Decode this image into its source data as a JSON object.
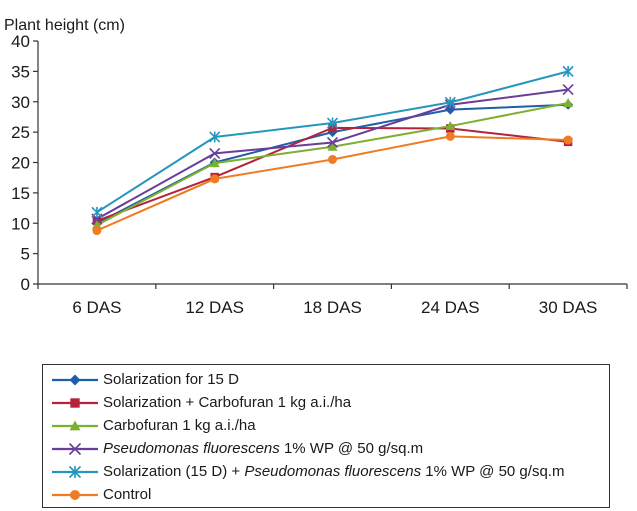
{
  "chart_data": {
    "type": "line",
    "ylabel": "Plant height (cm)",
    "xlabel": "",
    "categories": [
      "6 DAS",
      "12 DAS",
      "18 DAS",
      "24 DAS",
      "30 DAS"
    ],
    "ylim": [
      0,
      40
    ],
    "yticks": [
      "0",
      "5",
      "10",
      "15",
      "20",
      "25",
      "30",
      "35",
      "40"
    ],
    "grid": false,
    "legend_position": "bottom",
    "series": [
      {
        "name": "Solarization for 15 D",
        "color": "#1f5fa8",
        "marker": "diamond",
        "values": [
          10,
          20,
          25,
          28.7,
          29.5
        ],
        "legend_parts": [
          {
            "text": "Solarization for 15 D",
            "italic": false
          }
        ]
      },
      {
        "name": "Solarization + Carbofuran 1 kg a.i./ha",
        "color": "#b5233a",
        "marker": "square",
        "values": [
          10.4,
          17.6,
          25.7,
          25.6,
          23.4
        ],
        "legend_parts": [
          {
            "text": "Solarization + Carbofuran 1 kg a.i./ha",
            "italic": false
          }
        ]
      },
      {
        "name": "Carbofuran 1 kg a.i./ha",
        "color": "#7cb030",
        "marker": "triangle",
        "values": [
          9.7,
          19.9,
          22.6,
          26,
          29.8
        ],
        "legend_parts": [
          {
            "text": "Carbofuran 1 kg a.i./ha",
            "italic": false
          }
        ]
      },
      {
        "name": "Pseudomonas fluorescens 1% WP @ 50 g/sq.m",
        "color": "#6a3d9a",
        "marker": "x",
        "values": [
          10.7,
          21.5,
          23.3,
          29.5,
          32
        ],
        "legend_parts": [
          {
            "text": "Pseudomonas fluorescens",
            "italic": true
          },
          {
            "text": " 1% WP @ 50 g/sq.m",
            "italic": false
          }
        ]
      },
      {
        "name": "Solarization (15 D) + Pseudomonas fluorescens 1% WP @ 50 g/sq.m",
        "color": "#2596be",
        "marker": "star",
        "values": [
          11.8,
          24.2,
          26.5,
          29.9,
          35
        ],
        "legend_parts": [
          {
            "text": "Solarization (15 D) + ",
            "italic": false
          },
          {
            "text": "Pseudomonas fluorescens",
            "italic": true
          },
          {
            "text": " 1% WP @ 50 g/sq.m",
            "italic": false
          }
        ]
      },
      {
        "name": "Control",
        "color": "#ef7b22",
        "marker": "circle",
        "values": [
          8.8,
          17.3,
          20.5,
          24.3,
          23.7
        ],
        "legend_parts": [
          {
            "text": "Control",
            "italic": false
          }
        ]
      }
    ]
  }
}
